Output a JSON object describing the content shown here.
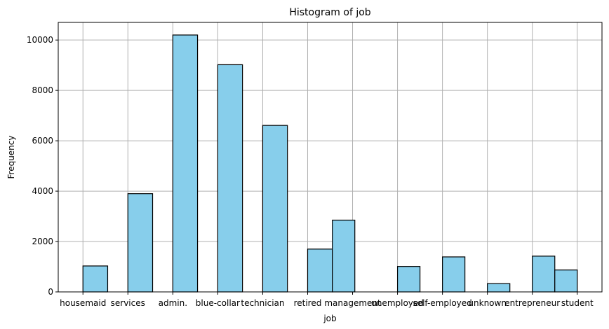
{
  "chart_data": {
    "type": "bar",
    "title": "Histogram of job",
    "xlabel": "job",
    "ylabel": "Frequency",
    "ylim": [
      0,
      10700
    ],
    "y_ticks": [
      0,
      2000,
      4000,
      6000,
      8000,
      10000
    ],
    "grid": true,
    "bar_color": "#87ceeb",
    "edge_color": "#000000",
    "grid_color": "#b0b0b0",
    "categories": [
      "housemaid",
      "services",
      "admin.",
      "blue-collar",
      "technician",
      "retired",
      "management",
      "unemployed",
      "self-employed",
      "unknown",
      "entrepreneur",
      "student"
    ],
    "category_x": [
      0,
      1,
      2,
      3,
      4,
      5,
      6,
      7,
      8,
      9,
      10,
      11
    ],
    "bins": [
      {
        "start": 0.0,
        "end": 0.55,
        "value": 1030
      },
      {
        "start": 1.0,
        "end": 1.55,
        "value": 3900
      },
      {
        "start": 2.0,
        "end": 2.55,
        "value": 10200
      },
      {
        "start": 3.0,
        "end": 3.55,
        "value": 9020
      },
      {
        "start": 4.0,
        "end": 4.55,
        "value": 6610
      },
      {
        "start": 5.0,
        "end": 5.55,
        "value": 1700
      },
      {
        "start": 5.55,
        "end": 6.05,
        "value": 2850
      },
      {
        "start": 7.0,
        "end": 7.5,
        "value": 1010
      },
      {
        "start": 8.0,
        "end": 8.5,
        "value": 1390
      },
      {
        "start": 9.0,
        "end": 9.5,
        "value": 330
      },
      {
        "start": 10.0,
        "end": 10.5,
        "value": 1420
      },
      {
        "start": 10.5,
        "end": 11.0,
        "value": 870
      }
    ],
    "xlim": [
      -0.55,
      11.55
    ]
  }
}
